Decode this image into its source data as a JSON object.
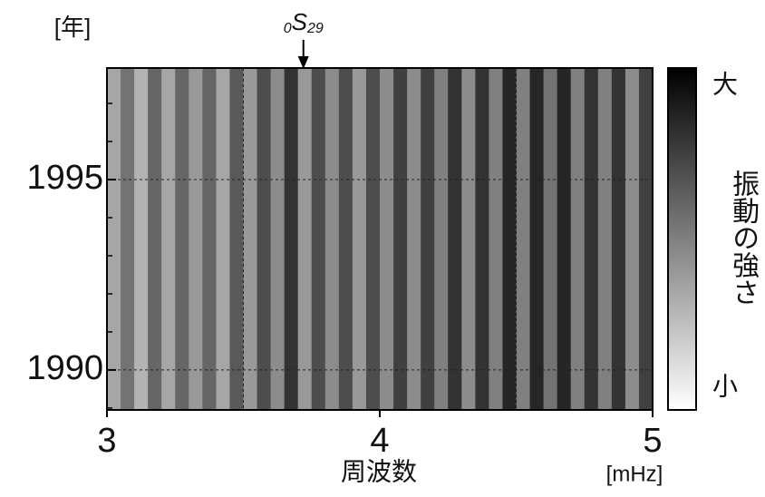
{
  "chart_data": {
    "type": "heatmap",
    "ylabel": "[年]",
    "xlabel": "周波数",
    "xunit": "[mHz]",
    "colorbar_label": "振動の強さ",
    "colorbar_high": "大",
    "colorbar_low": "小",
    "annotation": {
      "prefix": "0",
      "symbol": "S",
      "suffix": "29",
      "x": 3.72
    },
    "xlim": [
      3,
      5
    ],
    "xticks": [
      3,
      4,
      5
    ],
    "xgrid": [
      3.5,
      4.5
    ],
    "ylim": [
      1988.95,
      1997.93
    ],
    "yticks": [
      1990,
      1995
    ],
    "ygrid": [
      1990,
      1995
    ],
    "yminor": [
      1989,
      1991,
      1992,
      1993,
      1994,
      1996,
      1997
    ],
    "clim": [
      0,
      1
    ],
    "x": [
      3.025,
      3.075,
      3.125,
      3.175,
      3.225,
      3.275,
      3.325,
      3.375,
      3.425,
      3.475,
      3.525,
      3.575,
      3.625,
      3.675,
      3.725,
      3.775,
      3.825,
      3.875,
      3.925,
      3.975,
      4.025,
      4.075,
      4.125,
      4.175,
      4.225,
      4.275,
      4.325,
      4.375,
      4.425,
      4.475,
      4.525,
      4.575,
      4.625,
      4.675,
      4.725,
      4.775,
      4.825,
      4.875,
      4.925,
      4.975
    ],
    "values": [
      0.35,
      0.55,
      0.3,
      0.6,
      0.35,
      0.6,
      0.4,
      0.6,
      0.35,
      0.65,
      0.4,
      0.7,
      0.45,
      0.8,
      0.4,
      0.7,
      0.45,
      0.7,
      0.4,
      0.7,
      0.45,
      0.75,
      0.45,
      0.75,
      0.5,
      0.8,
      0.45,
      0.8,
      0.5,
      0.85,
      0.5,
      0.85,
      0.55,
      0.85,
      0.5,
      0.8,
      0.5,
      0.8,
      0.45,
      0.75
    ]
  }
}
